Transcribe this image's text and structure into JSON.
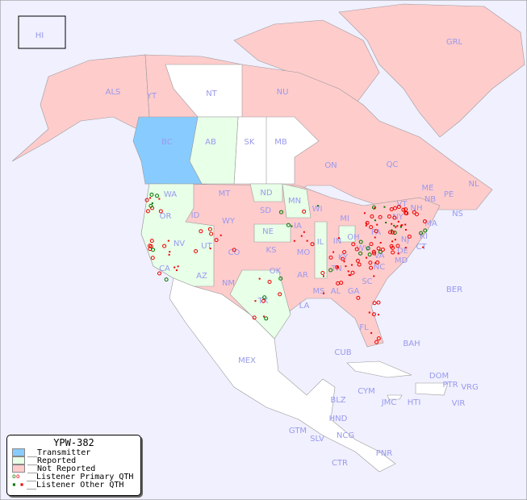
{
  "colors": {
    "background": "#f0f0ff",
    "transmitter": "#88ccff",
    "reported": "#e8ffe8",
    "not_reported": "#ffcccc",
    "unlisted": "#ffffff",
    "label": "#9999ee",
    "primary_qth_green": "#007700",
    "primary_qth_red": "#ee0000"
  },
  "legend": {
    "title": "YPW-382",
    "items": [
      {
        "label": "__Transmitter",
        "color": "#88ccff"
      },
      {
        "label": "__Reported",
        "color": "#e8ffe8"
      },
      {
        "label": "__Not Reported",
        "color": "#ffcccc"
      },
      {
        "label": "__Listener Primary QTH",
        "marker": "circle"
      },
      {
        "label": "__Listener Other QTH",
        "marker": "square"
      }
    ]
  },
  "regions": [
    "HI",
    "ALS",
    "YT",
    "NT",
    "NU",
    "GRL",
    "BC",
    "AB",
    "SK",
    "MB",
    "ON",
    "QC",
    "NL",
    "NS",
    "NB",
    "PE",
    "WA",
    "OR",
    "CA",
    "NV",
    "ID",
    "MT",
    "WY",
    "UT",
    "AZ",
    "CO",
    "NM",
    "ND",
    "SD",
    "NE",
    "KS",
    "OK",
    "TX",
    "MN",
    "IA",
    "MO",
    "AR",
    "LA",
    "WI",
    "IL",
    "MI",
    "IN",
    "OH",
    "KY",
    "TN",
    "MS",
    "AL",
    "GA",
    "FL",
    "SC",
    "NC",
    "VA",
    "WV",
    "PA",
    "NY",
    "VT",
    "NH",
    "ME",
    "MA",
    "CT",
    "RI",
    "NJ",
    "DE",
    "MD",
    "BER",
    "BAH",
    "CUB",
    "MEX",
    "CYM",
    "JMC",
    "HTI",
    "DOM",
    "PTR",
    "VRG",
    "VIR",
    "BLZ",
    "GTM",
    "HND",
    "SLV",
    "NCG",
    "CTR",
    "PNR"
  ]
}
